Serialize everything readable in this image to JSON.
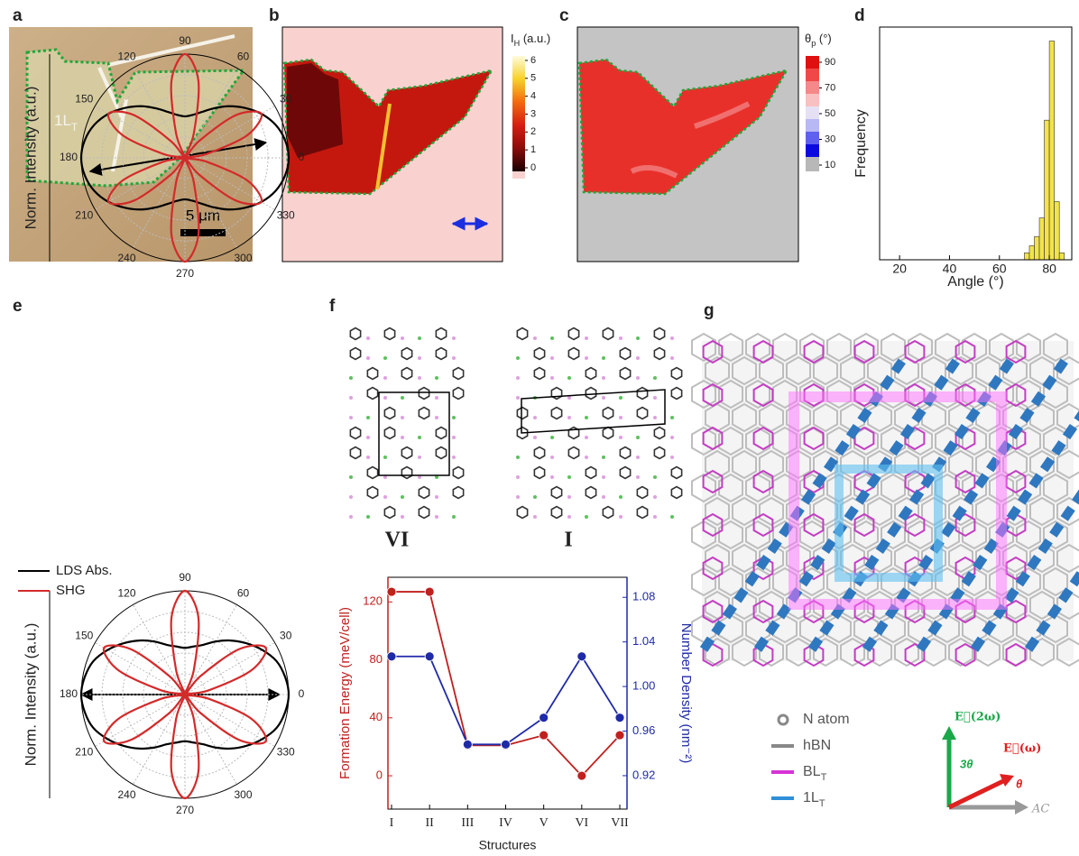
{
  "panel_labels": [
    "a",
    "b",
    "c",
    "d",
    "e",
    "f",
    "g"
  ],
  "panel_a": {
    "flake_label": {
      "main": "1L",
      "sub": "T"
    },
    "scale_bar": "5 μm"
  },
  "panel_b": {
    "colorbar_label": {
      "main": "I",
      "sub": "H",
      "unit": " (a.u.)"
    },
    "colorbar_ticks": [
      0,
      1,
      2,
      3,
      4,
      5,
      6
    ]
  },
  "panel_c": {
    "colorbar_label": {
      "main": "θ",
      "sub": "p",
      "unit": " (°)"
    },
    "colorbar_ticks": [
      10,
      30,
      50,
      70,
      90
    ]
  },
  "panel_f": {
    "structure_labels": [
      "VI",
      "I"
    ]
  },
  "panel_g": {
    "legend": [
      {
        "label": {
          "main": "N atom"
        },
        "color": "#888888"
      },
      {
        "label": {
          "main": "hBN"
        },
        "color": "#888888"
      },
      {
        "label": {
          "main": "BL",
          "sub": "T"
        },
        "color": "#d633d6"
      },
      {
        "label": {
          "main": "1L",
          "sub": "T"
        },
        "color": "#2f8fd8"
      }
    ],
    "vectors": {
      "e2w": "E⃗(2ω)",
      "ew": "E⃗(ω)",
      "three_theta": "3θ",
      "theta": "θ",
      "ac": "AC"
    }
  },
  "chart_data": [
    {
      "type": "histogram",
      "xlabel": "Angle (°)",
      "ylabel": "Frequency",
      "bins": [
        70,
        72,
        74,
        76,
        78,
        80,
        82,
        84,
        86
      ],
      "counts": [
        3,
        6,
        10,
        18,
        60,
        94,
        25,
        3
      ],
      "color": "#f2e34a",
      "xlim": [
        12,
        89
      ],
      "xticks": [
        20,
        40,
        60,
        80
      ],
      "ylim": [
        0,
        100
      ]
    },
    {
      "type": "polar",
      "ylabel": "Norm. Intensity (a.u.)",
      "angle_ticks": [
        0,
        30,
        60,
        90,
        120,
        150,
        180,
        210,
        240,
        270,
        300,
        330
      ],
      "rlim": [
        0,
        1
      ],
      "theta": [
        0,
        10,
        20,
        30,
        40,
        50,
        60,
        70,
        80,
        90,
        100,
        110,
        120,
        130,
        140,
        150,
        160,
        170,
        180,
        190,
        200,
        210,
        220,
        230,
        240,
        250,
        260,
        270,
        280,
        290,
        300,
        310,
        320,
        330,
        340,
        350
      ],
      "series": [
        {
          "name": "LDS Abs.",
          "color": "#000000",
          "values": [
            1,
            0.98,
            0.93,
            0.85,
            0.75,
            0.65,
            0.55,
            0.47,
            0.42,
            0.4,
            0.42,
            0.47,
            0.55,
            0.65,
            0.75,
            0.85,
            0.93,
            0.98,
            1,
            0.98,
            0.93,
            0.85,
            0.75,
            0.65,
            0.55,
            0.47,
            0.42,
            0.4,
            0.42,
            0.47,
            0.55,
            0.65,
            0.75,
            0.85,
            0.93,
            0.98
          ]
        },
        {
          "name": "SHG",
          "color": "#d42a2a",
          "values": [
            0,
            0.21,
            0.64,
            0.85,
            0.64,
            0.21,
            0,
            0.25,
            0.75,
            1,
            0.75,
            0.25,
            0,
            0.21,
            0.64,
            0.85,
            0.64,
            0.21,
            0,
            0.21,
            0.64,
            0.85,
            0.64,
            0.21,
            0,
            0.25,
            0.75,
            1,
            0.75,
            0.25,
            0,
            0.21,
            0.64,
            0.85,
            0.64,
            0.21
          ]
        }
      ]
    },
    {
      "type": "polar",
      "ylabel": "Norm. Intensity (a.u.)",
      "angle_ticks": [
        0,
        30,
        60,
        90,
        120,
        150,
        180,
        210,
        240,
        270,
        300,
        330
      ],
      "rlim": [
        0,
        1
      ],
      "theta": [
        0,
        10,
        20,
        30,
        40,
        50,
        60,
        70,
        80,
        90,
        100,
        110,
        120,
        130,
        140,
        150,
        160,
        170,
        180,
        190,
        200,
        210,
        220,
        230,
        240,
        250,
        260,
        270,
        280,
        290,
        300,
        310,
        320,
        330,
        340,
        350
      ],
      "series": [
        {
          "color": "#000000",
          "values": [
            1,
            0.98,
            0.94,
            0.86,
            0.77,
            0.68,
            0.59,
            0.51,
            0.47,
            0.45,
            0.47,
            0.51,
            0.59,
            0.68,
            0.77,
            0.86,
            0.94,
            0.98,
            1,
            0.98,
            0.94,
            0.86,
            0.77,
            0.68,
            0.59,
            0.51,
            0.47,
            0.45,
            0.47,
            0.51,
            0.59,
            0.68,
            0.77,
            0.86,
            0.94,
            0.98
          ]
        },
        {
          "color": "#d42a2a",
          "values": [
            0,
            0.23,
            0.68,
            0.9,
            0.68,
            0.23,
            0,
            0.25,
            0.75,
            1,
            0.75,
            0.25,
            0,
            0.23,
            0.68,
            0.9,
            0.68,
            0.23,
            0,
            0.23,
            0.68,
            0.9,
            0.68,
            0.23,
            0,
            0.25,
            0.75,
            1,
            0.75,
            0.25,
            0,
            0.23,
            0.68,
            0.9,
            0.68,
            0.23
          ]
        }
      ]
    },
    {
      "type": "line",
      "xlabel": "Structures",
      "ylabel": "Formation Energy (meV/cell)",
      "y2label": "Number Density (nm⁻²)",
      "ylabel_color": "#c0201e",
      "y2label_color": "#1f2aa8",
      "categories": [
        "I",
        "II",
        "III",
        "IV",
        "V",
        "VI",
        "VII"
      ],
      "ylim": [
        -23,
        137
      ],
      "yticks": [
        0,
        40,
        80,
        120
      ],
      "y2lim": [
        0.89,
        1.098
      ],
      "y2ticks": [
        0.92,
        0.96,
        {
          "value": 1,
          "label": "1.00"
        },
        1.04,
        1.08
      ],
      "series": [
        {
          "color": "#c0201e",
          "values": [
            127,
            127,
            21,
            21,
            28,
            0,
            28
          ]
        },
        {
          "color": "#1f2aa8",
          "axis": "y2",
          "values": [
            1.027,
            1.027,
            0.948,
            0.948,
            0.972,
            1.027,
            0.972
          ]
        }
      ]
    }
  ]
}
